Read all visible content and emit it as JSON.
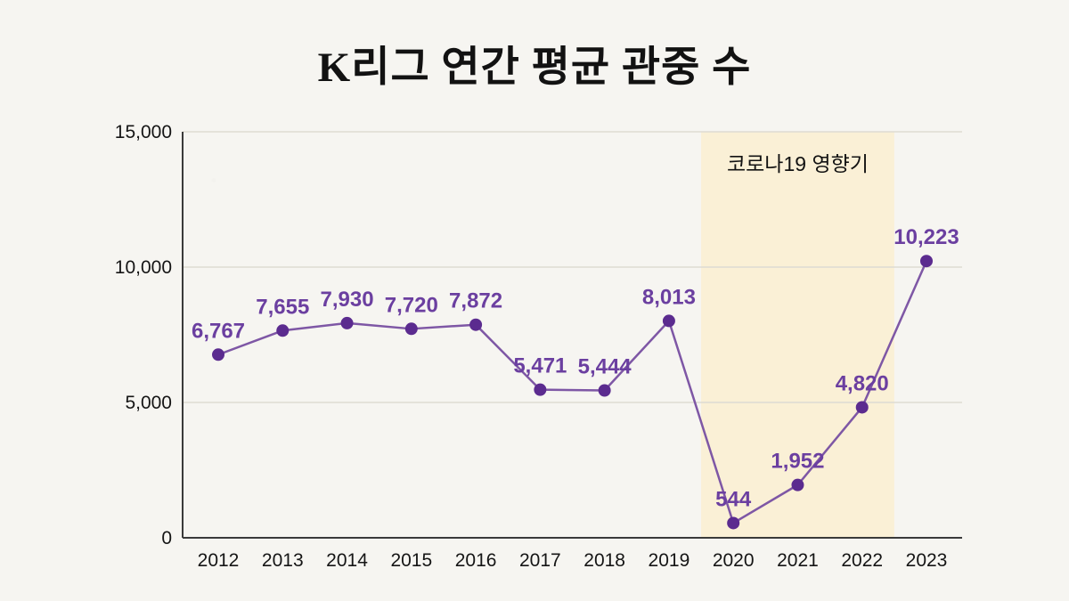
{
  "title": "K리그 연간 평균 관중 수",
  "chart_data": {
    "type": "line",
    "title": "K리그 연간 평균 관중 수",
    "categories": [
      "2012",
      "2013",
      "2014",
      "2015",
      "2016",
      "2017",
      "2018",
      "2019",
      "2020",
      "2021",
      "2022",
      "2023"
    ],
    "values": [
      6767,
      7655,
      7930,
      7720,
      7872,
      5471,
      5444,
      8013,
      544,
      1952,
      4820,
      10223
    ],
    "value_labels": [
      "6,767",
      "7,655",
      "7,930",
      "7,720",
      "7,872",
      "5,471",
      "5,444",
      "8,013",
      "544",
      "1,952",
      "4,820",
      "10,223"
    ],
    "xlabel": "",
    "ylabel": "",
    "ylim": [
      0,
      15000
    ],
    "yticks": [
      0,
      5000,
      10000,
      15000
    ],
    "ytick_labels": [
      "0",
      "5,000",
      "10,000",
      "15,000"
    ],
    "grid": true,
    "legend": "none",
    "annotation": {
      "label": "코로나19 영향기",
      "x_start": "2020",
      "x_end": "2022",
      "region_color": "#faf0d6"
    },
    "colors": {
      "line": "#7e57a5",
      "point": "#5b2b8f",
      "point_label": "#6b3fa0",
      "grid": "#dddbd3",
      "axis": "#3a3a3a",
      "background": "#f6f5f1",
      "title_text": "#121212"
    }
  }
}
